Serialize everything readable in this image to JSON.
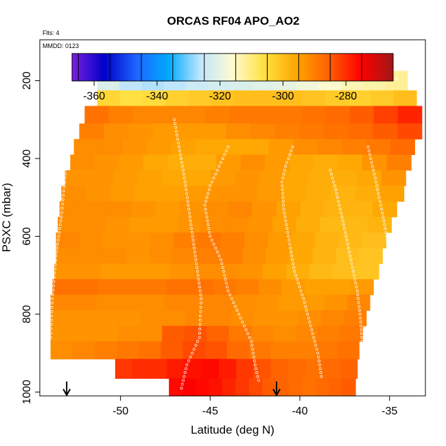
{
  "chart_data": {
    "type": "heatmap",
    "title": "ORCAS RF04 APO_AO2",
    "flights_label": "Flts: 4",
    "date_label": "MMDD: 0123",
    "xlabel": "Latitude (deg N)",
    "ylabel": "PSXC (mbar)",
    "xlim": [
      -54.5,
      -33
    ],
    "ylim": [
      1010,
      95
    ],
    "x_ticks": [
      -50,
      -45,
      -40,
      -35
    ],
    "x_tick_labels": [
      "-50",
      "-45",
      "-40",
      "-35"
    ],
    "y_ticks": [
      200,
      400,
      600,
      800,
      1000
    ],
    "y_tick_labels": [
      "200",
      "400",
      "600",
      "800",
      "1000"
    ],
    "colorbar": {
      "range": [
        -367,
        -265
      ],
      "ticks": [
        -360,
        -340,
        -320,
        -300,
        -280
      ],
      "tick_labels": [
        "-360",
        "-340",
        "-320",
        "-300",
        "-280"
      ],
      "colors": [
        "#7a1fe0",
        "#0000c8",
        "#1e64ff",
        "#00aaff",
        "#bfe6ff",
        "#fffbd0",
        "#ffe040",
        "#ffa500",
        "#ff6000",
        "#ff0000",
        "#a01818"
      ]
    },
    "arrows_lat": [
      -53,
      -41.3
    ],
    "rows": [
      {
        "p_top": 175,
        "p_bot": 225,
        "lat_min": -51.3,
        "lat_max": -34.0,
        "values": [
          -322,
          -326,
          -327,
          -326,
          -324,
          -323,
          -322,
          -321,
          -320,
          -318,
          -316,
          -314,
          -313,
          -312
        ]
      },
      {
        "p_top": 225,
        "p_bot": 265,
        "lat_min": -51.3,
        "lat_max": -33.5,
        "values": [
          -304,
          -306,
          -305,
          -303,
          -302,
          -301,
          -300,
          -300,
          -300,
          -301,
          -302,
          -303,
          -302,
          -300
        ]
      },
      {
        "p_top": 265,
        "p_bot": 310,
        "lat_min": -52.0,
        "lat_max": -33.2,
        "values": [
          -288,
          -290,
          -291,
          -291,
          -291,
          -290,
          -289,
          -289,
          -289,
          -288,
          -287,
          -285,
          -282,
          -279
        ]
      },
      {
        "p_top": 310,
        "p_bot": 350,
        "lat_min": -52.3,
        "lat_max": -33.2,
        "values": [
          -290,
          -292,
          -293,
          -294,
          -294,
          -294,
          -292,
          -291,
          -290,
          -289,
          -288,
          -287,
          -285,
          -283
        ]
      },
      {
        "p_top": 350,
        "p_bot": 390,
        "lat_min": -52.6,
        "lat_max": -33.6,
        "values": [
          -292,
          -292,
          -293,
          -294,
          -295,
          -296,
          -296,
          -296,
          -294,
          -292,
          -291,
          -290,
          -289,
          -287
        ]
      },
      {
        "p_top": 390,
        "p_bot": 430,
        "lat_min": -52.8,
        "lat_max": -33.8,
        "values": [
          -292,
          -293,
          -294,
          -296,
          -297,
          -297,
          -294,
          -292,
          -294,
          -296,
          -297,
          -296,
          -293,
          -290
        ]
      },
      {
        "p_top": 430,
        "p_bot": 470,
        "lat_min": -53.1,
        "lat_max": -34.1,
        "values": [
          -293,
          -293,
          -294,
          -295,
          -296,
          -296,
          -294,
          -293,
          -294,
          -296,
          -297,
          -297,
          -296,
          -293
        ]
      },
      {
        "p_top": 470,
        "p_bot": 510,
        "lat_min": -53.3,
        "lat_max": -34.2,
        "values": [
          -292,
          -293,
          -294,
          -295,
          -295,
          -294,
          -293,
          -293,
          -294,
          -296,
          -297,
          -298,
          -297,
          -295
        ]
      },
      {
        "p_top": 510,
        "p_bot": 550,
        "lat_min": -53.4,
        "lat_max": -34.6,
        "values": [
          -292,
          -292,
          -292,
          -293,
          -294,
          -293,
          -292,
          -291,
          -293,
          -295,
          -297,
          -298,
          -298,
          -296
        ]
      },
      {
        "p_top": 550,
        "p_bot": 590,
        "lat_min": -53.5,
        "lat_max": -34.9,
        "values": [
          -292,
          -292,
          -293,
          -294,
          -294,
          -293,
          -292,
          -292,
          -293,
          -295,
          -297,
          -299,
          -299,
          -298
        ]
      },
      {
        "p_top": 590,
        "p_bot": 630,
        "lat_min": -53.6,
        "lat_max": -35.2,
        "values": [
          -291,
          -292,
          -293,
          -293,
          -292,
          -290,
          -289,
          -290,
          -292,
          -294,
          -296,
          -298,
          -299,
          -300
        ]
      },
      {
        "p_top": 630,
        "p_bot": 670,
        "lat_min": -53.6,
        "lat_max": -35.4,
        "values": [
          -292,
          -292,
          -292,
          -293,
          -292,
          -291,
          -290,
          -290,
          -292,
          -294,
          -296,
          -298,
          -300,
          -301
        ]
      },
      {
        "p_top": 670,
        "p_bot": 710,
        "lat_min": -53.7,
        "lat_max": -35.6,
        "values": [
          -293,
          -293,
          -294,
          -294,
          -294,
          -293,
          -292,
          -292,
          -293,
          -295,
          -297,
          -299,
          -300,
          -301
        ]
      },
      {
        "p_top": 710,
        "p_bot": 750,
        "lat_min": -53.8,
        "lat_max": -35.9,
        "values": [
          -288,
          -288,
          -289,
          -289,
          -289,
          -288,
          -288,
          -289,
          -290,
          -292,
          -294,
          -295,
          -295,
          -294
        ]
      },
      {
        "p_top": 750,
        "p_bot": 790,
        "lat_min": -53.9,
        "lat_max": -36.1,
        "values": [
          -291,
          -291,
          -292,
          -292,
          -292,
          -291,
          -291,
          -291,
          -292,
          -293,
          -294,
          -294,
          -293,
          -291
        ]
      },
      {
        "p_top": 790,
        "p_bot": 830,
        "lat_min": -53.9,
        "lat_max": -36.3,
        "values": [
          -293,
          -293,
          -293,
          -293,
          -292,
          -292,
          -291,
          -291,
          -292,
          -293,
          -293,
          -292,
          -291,
          -290
        ]
      },
      {
        "p_top": 830,
        "p_bot": 870,
        "lat_min": -53.9,
        "lat_max": -36.5,
        "values": [
          -293,
          -293,
          -293,
          -292,
          -292,
          -285,
          -284,
          -286,
          -289,
          -291,
          -292,
          -291,
          -290,
          -289
        ]
      },
      {
        "p_top": 870,
        "p_bot": 915,
        "lat_min": -53.9,
        "lat_max": -36.7,
        "values": [
          -292,
          -291,
          -290,
          -289,
          -288,
          -285,
          -283,
          -284,
          -287,
          -289,
          -290,
          -290,
          -289,
          -288
        ]
      },
      {
        "p_top": 915,
        "p_bot": 965,
        "lat_min": -50.3,
        "lat_max": -36.8,
        "values": [
          -281,
          -280,
          -280,
          -278,
          -277,
          -276,
          -278,
          -281,
          -284,
          -286,
          -287,
          -288,
          -287,
          -286
        ]
      },
      {
        "p_top": 965,
        "p_bot": 1010,
        "lat_min": -47.3,
        "lat_max": -36.9,
        "values": [
          -276,
          -275,
          -276,
          -277,
          -279,
          -281,
          -283,
          -285,
          -286,
          -287,
          -288,
          -287,
          -286,
          -285
        ]
      }
    ],
    "flight_tracks": [
      {
        "points": [
          [
            -52.6,
            195
          ],
          [
            -51.0,
            195
          ],
          [
            -50.0,
            195
          ]
        ]
      },
      {
        "points": [
          [
            -38.8,
            195
          ],
          [
            -36.5,
            195
          ],
          [
            -34.6,
            195
          ]
        ]
      },
      {
        "points": [
          [
            -52.9,
            345
          ],
          [
            -53.1,
            450
          ],
          [
            -53.3,
            550
          ],
          [
            -53.6,
            650
          ],
          [
            -53.8,
            760
          ],
          [
            -53.9,
            860
          ]
        ]
      },
      {
        "points": [
          [
            -47.0,
            300
          ],
          [
            -46.7,
            380
          ],
          [
            -46.4,
            460
          ],
          [
            -46.1,
            560
          ],
          [
            -45.8,
            660
          ],
          [
            -45.5,
            760
          ],
          [
            -45.6,
            860
          ],
          [
            -46.3,
            930
          ],
          [
            -46.6,
            990
          ]
        ]
      },
      {
        "points": [
          [
            -44.0,
            370
          ],
          [
            -44.5,
            420
          ],
          [
            -45.0,
            470
          ],
          [
            -45.3,
            520
          ],
          [
            -45.0,
            600
          ],
          [
            -44.4,
            660
          ],
          [
            -44.0,
            740
          ],
          [
            -43.2,
            820
          ],
          [
            -42.7,
            870
          ],
          [
            -42.5,
            930
          ],
          [
            -42.3,
            970
          ]
        ]
      },
      {
        "points": [
          [
            -40.4,
            370
          ],
          [
            -40.8,
            420
          ],
          [
            -41.0,
            460
          ],
          [
            -40.9,
            530
          ],
          [
            -40.6,
            610
          ],
          [
            -40.3,
            690
          ],
          [
            -39.8,
            760
          ],
          [
            -39.4,
            830
          ],
          [
            -39.0,
            900
          ],
          [
            -38.8,
            960
          ]
        ]
      },
      {
        "points": [
          [
            -38.3,
            430
          ],
          [
            -38.0,
            480
          ],
          [
            -37.6,
            560
          ],
          [
            -37.2,
            650
          ],
          [
            -36.8,
            740
          ],
          [
            -36.6,
            820
          ],
          [
            -36.5,
            900
          ],
          [
            -36.4,
            970
          ]
        ]
      },
      {
        "points": [
          [
            -36.2,
            370
          ],
          [
            -35.8,
            450
          ],
          [
            -35.4,
            540
          ],
          [
            -35.0,
            640
          ]
        ]
      }
    ]
  }
}
